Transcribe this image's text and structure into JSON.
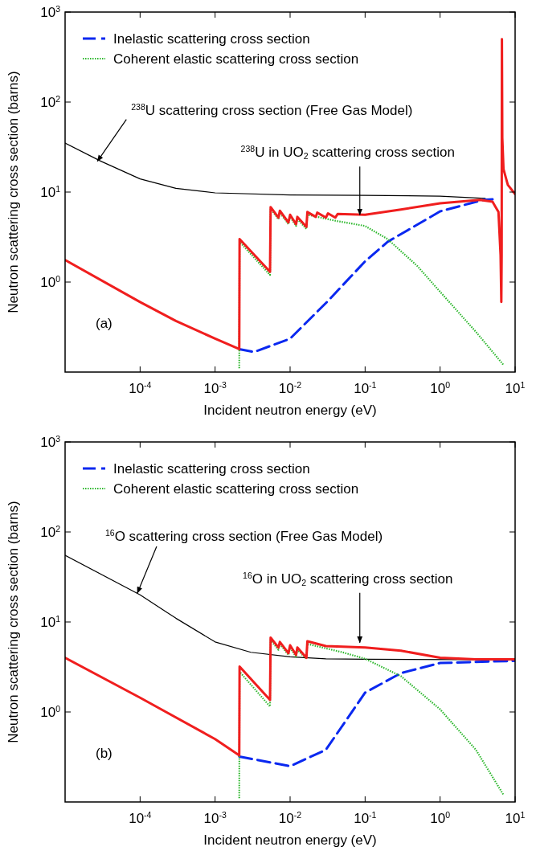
{
  "chart_data": [
    {
      "type": "line",
      "xlabel": "Incident neutron energy (eV)",
      "ylabel": "Neutron scattering cross section (barns)",
      "log": "xy",
      "legend": "top left",
      "grid": false,
      "xlim": [
        1e-05,
        10
      ],
      "ylim": [
        0.1,
        1000
      ],
      "xticks": [
        {
          "value": 0.0001,
          "label": "10$^{-4}$"
        },
        {
          "value": 0.001,
          "label": "10$^{-3}$"
        },
        {
          "value": 0.01,
          "label": "10$^{-2}$"
        },
        {
          "value": 0.1,
          "label": "10$^{-1}$"
        },
        {
          "value": 1,
          "label": "10$^{0}$"
        },
        {
          "value": 10,
          "label": "10$^{1}$"
        }
      ],
      "yticks": [
        {
          "value": 1,
          "label": "10$^{0}$"
        },
        {
          "value": 10,
          "label": "10$^{1}$"
        },
        {
          "value": 100,
          "label": "10$^{2}$"
        },
        {
          "value": 1000,
          "label": "10$^{3}$"
        }
      ],
      "series": [
        {
          "color": "#000000",
          "line_style": "solid",
          "x": [
            1e-05,
            3e-05,
            0.0001,
            0.0003,
            0.001,
            0.01,
            0.1,
            1,
            4
          ],
          "values": [
            35,
            22,
            14,
            11,
            9.8,
            9.3,
            9.2,
            9.0,
            8.5
          ]
        },
        {
          "name": "Inelastic scattering cross section",
          "color": "#0a28f0",
          "line_style": "dashed",
          "x": [
            0.0021,
            0.0033,
            0.01,
            0.031,
            0.1,
            0.2,
            1,
            3.8,
            5
          ],
          "values": [
            0.18,
            0.167,
            0.235,
            0.6,
            1.7,
            2.8,
            6.1,
            8.2,
            8.3
          ]
        },
        {
          "name": "Coherent elastic scattering cross section",
          "color": "#2eb82e",
          "line_style": "dotted",
          "x": [
            0.0021,
            0.00212,
            0.0054,
            0.0055,
            0.007,
            0.0073,
            0.0095,
            0.01,
            0.012,
            0.0125,
            0.0165,
            0.017,
            0.04,
            0.1,
            0.2,
            0.5,
            1,
            3,
            7
          ],
          "values": [
            0.11,
            2.8,
            1.2,
            6.5,
            5.0,
            5.9,
            4.4,
            5.3,
            4.2,
            5.0,
            3.9,
            5.6,
            4.8,
            4.2,
            3.0,
            1.5,
            0.78,
            0.28,
            0.12
          ]
        },
        {
          "color": "#f01e1e",
          "line_style": "solid",
          "x": [
            1e-05,
            0.0001,
            0.0003,
            0.001,
            0.0021,
            0.00212,
            0.0054,
            0.0055,
            0.007,
            0.0073,
            0.0095,
            0.01,
            0.012,
            0.0125,
            0.0165,
            0.017,
            0.022,
            0.023,
            0.03,
            0.032,
            0.04,
            0.043,
            0.1,
            0.3,
            1,
            3.4,
            5,
            6,
            6.4,
            6.55,
            6.62,
            6.67,
            6.75,
            7,
            8,
            10
          ],
          "values": [
            1.76,
            0.6,
            0.37,
            0.235,
            0.18,
            3.0,
            1.3,
            6.8,
            5.2,
            6.2,
            4.6,
            5.6,
            4.4,
            5.3,
            4.1,
            6.0,
            5.3,
            5.9,
            5.2,
            5.8,
            5.2,
            5.7,
            5.6,
            6.4,
            7.5,
            8.2,
            7.8,
            6,
            2,
            0.6,
            2,
            500,
            40,
            18,
            12,
            9.5
          ]
        }
      ],
      "annotations": [
        {
          "text": "$^{238}$U scattering cross section (Free Gas Model)",
          "x": 2.7e-05,
          "y": 22
        },
        {
          "text": "$^{238}$U in UO$_{2}$ scattering cross section",
          "x": 0.085,
          "y": 5.6
        },
        "(a)"
      ]
    },
    {
      "type": "line",
      "xlabel": "Incident neutron energy (eV)",
      "ylabel": "Neutron scattering cross section (barns)",
      "log": "xy",
      "legend": "top left",
      "grid": false,
      "xlim": [
        1e-05,
        10
      ],
      "ylim": [
        0.1,
        1000
      ],
      "xticks": [
        {
          "value": 0.0001,
          "label": "10$^{-4}$"
        },
        {
          "value": 0.001,
          "label": "10$^{-3}$"
        },
        {
          "value": 0.01,
          "label": "10$^{-2}$"
        },
        {
          "value": 0.1,
          "label": "10$^{-1}$"
        },
        {
          "value": 1,
          "label": "10$^{0}$"
        },
        {
          "value": 10,
          "label": "10$^{1}$"
        }
      ],
      "yticks": [
        {
          "value": 1,
          "label": "10$^{0}$"
        },
        {
          "value": 10,
          "label": "10$^{1}$"
        },
        {
          "value": 100,
          "label": "10$^{2}$"
        },
        {
          "value": 1000,
          "label": "10$^{3}$"
        }
      ],
      "series": [
        {
          "color": "#000000",
          "line_style": "solid",
          "x": [
            1e-05,
            0.0001,
            0.0003,
            0.001,
            0.003,
            0.01,
            0.03,
            0.1,
            10
          ],
          "values": [
            55,
            20,
            11,
            6,
            4.6,
            4.1,
            3.9,
            3.85,
            3.8
          ]
        },
        {
          "name": "Inelastic scattering cross section",
          "color": "#0a28f0",
          "line_style": "dashed",
          "x": [
            0.0021,
            0.01,
            0.03,
            0.1,
            0.3,
            1,
            10
          ],
          "values": [
            0.32,
            0.25,
            0.38,
            1.64,
            2.7,
            3.5,
            3.7
          ]
        },
        {
          "name": "Coherent elastic scattering cross section",
          "color": "#2eb82e",
          "line_style": "dotted",
          "x": [
            0.0021,
            0.00212,
            0.0054,
            0.0055,
            0.007,
            0.0073,
            0.0095,
            0.01,
            0.012,
            0.0125,
            0.0165,
            0.017,
            0.05,
            0.1,
            0.3,
            1,
            3,
            7
          ],
          "values": [
            0.11,
            2.8,
            1.15,
            6.3,
            4.9,
            5.7,
            4.3,
            5.2,
            4.1,
            4.9,
            3.9,
            5.7,
            4.6,
            3.9,
            2.5,
            1.07,
            0.38,
            0.12
          ]
        },
        {
          "color": "#f01e1e",
          "line_style": "solid",
          "x": [
            1e-05,
            0.0001,
            0.001,
            0.0021,
            0.00212,
            0.0054,
            0.0055,
            0.007,
            0.0073,
            0.0095,
            0.01,
            0.012,
            0.0125,
            0.0165,
            0.017,
            0.03,
            0.1,
            0.3,
            1,
            3,
            10
          ],
          "values": [
            4,
            1.44,
            0.5,
            0.33,
            3.2,
            1.36,
            6.7,
            5.2,
            6.0,
            4.5,
            5.5,
            4.3,
            5.2,
            4.0,
            6.1,
            5.4,
            5.2,
            4.8,
            4.0,
            3.85,
            3.85
          ]
        }
      ],
      "annotations": [
        {
          "text": "$^{16}$O scattering cross section (Free Gas Model)",
          "x": 9.2e-05,
          "y": 21
        },
        {
          "text": "$^{16}$O in UO$_{2}$ scattering cross section",
          "x": 0.085,
          "y": 5.9
        },
        "(b)"
      ]
    }
  ]
}
